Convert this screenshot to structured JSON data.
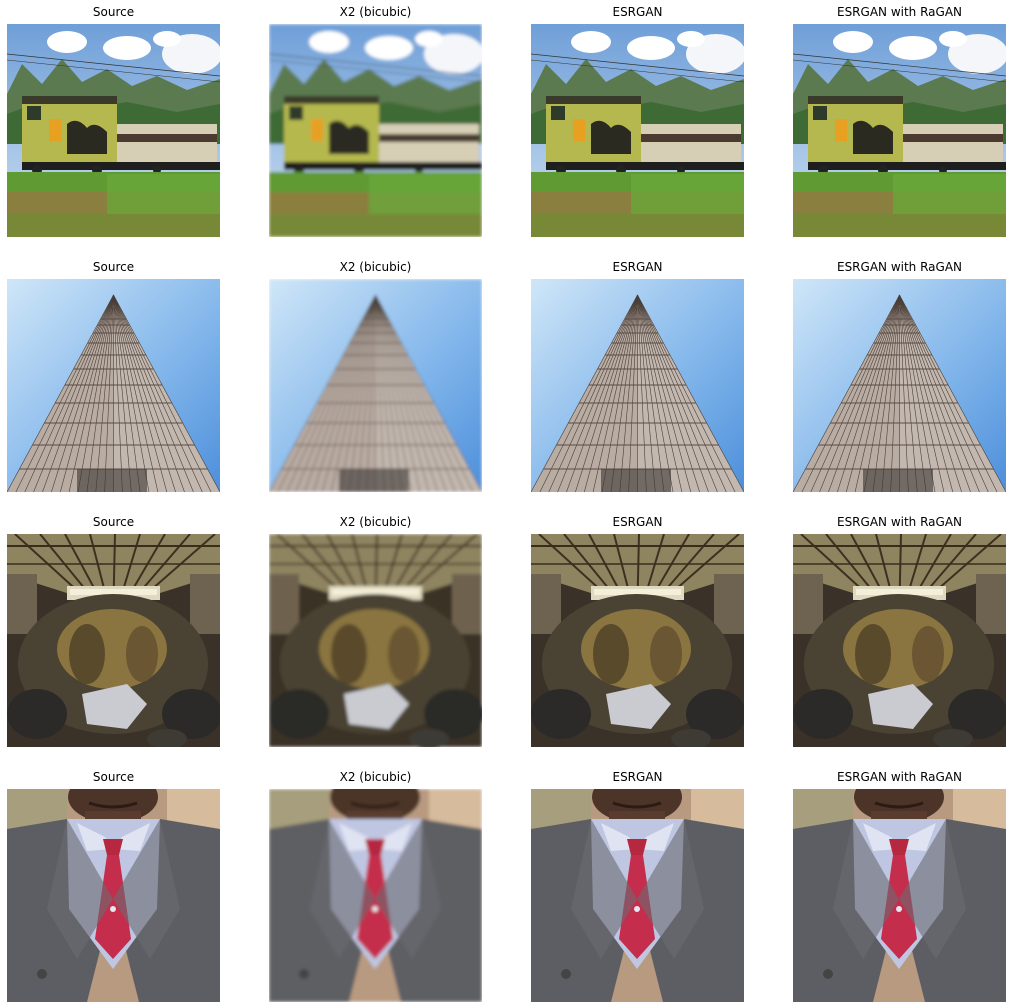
{
  "rows": [
    {
      "subject": "train",
      "panels": [
        {
          "title": "Source",
          "method": "source"
        },
        {
          "title": "X2 (bicubic)",
          "method": "bicubic"
        },
        {
          "title": "ESRGAN",
          "method": "esrgan"
        },
        {
          "title": "ESRGAN with RaGAN",
          "method": "esrgan-ragan"
        }
      ]
    },
    {
      "subject": "skyscraper",
      "panels": [
        {
          "title": "Source",
          "method": "source"
        },
        {
          "title": "X2 (bicubic)",
          "method": "bicubic"
        },
        {
          "title": "ESRGAN",
          "method": "esrgan"
        },
        {
          "title": "ESRGAN with RaGAN",
          "method": "esrgan-ragan"
        }
      ]
    },
    {
      "subject": "warehouse-rubble",
      "panels": [
        {
          "title": "Source",
          "method": "source"
        },
        {
          "title": "X2 (bicubic)",
          "method": "bicubic"
        },
        {
          "title": "ESRGAN",
          "method": "esrgan"
        },
        {
          "title": "ESRGAN with RaGAN",
          "method": "esrgan-ragan"
        }
      ]
    },
    {
      "subject": "suit-and-tie",
      "panels": [
        {
          "title": "Source",
          "method": "source"
        },
        {
          "title": "X2 (bicubic)",
          "method": "bicubic"
        },
        {
          "title": "ESRGAN",
          "method": "esrgan"
        },
        {
          "title": "ESRGAN with RaGAN",
          "method": "esrgan-ragan"
        }
      ]
    }
  ]
}
